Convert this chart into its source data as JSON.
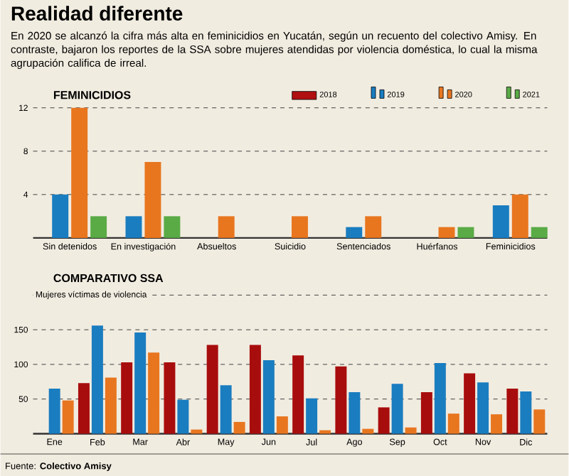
{
  "chart_data": [
    {
      "type": "bar",
      "title": "Realidad diferente",
      "subtitle": "En 2020 se alcanzó la cifra más alta en feminicidios en Yucatán, según un recuento del colectivo Amisy. En contraste, bajaron los reportes de la SSA sobre mujeres atendidas por violencia doméstica, lo cual la misma agrupación califica de irreal.",
      "annotations": [
        "FEMINICIDIOS"
      ],
      "categories": [
        "Sin detenidos",
        "En investigación",
        "Absueltos",
        "Suicidio",
        "Sentenciados",
        "Huérfanos",
        "Feminicidios"
      ],
      "series": [
        {
          "name": "2018",
          "color": "#b01010",
          "values": [
            null,
            null,
            null,
            null,
            null,
            null,
            null
          ]
        },
        {
          "name": "2019",
          "color": "#1a7dc0",
          "values": [
            4,
            2,
            null,
            null,
            1,
            null,
            3
          ]
        },
        {
          "name": "2020",
          "color": "#e8761f",
          "values": [
            12,
            7,
            2,
            2,
            2,
            1,
            4
          ]
        },
        {
          "name": "2021",
          "color": "#5aab46",
          "values": [
            2,
            2,
            null,
            null,
            null,
            1,
            1
          ]
        }
      ],
      "ylim": [
        0,
        12
      ],
      "yticks": [
        4,
        8,
        12
      ],
      "grid": "y",
      "legend": "top right"
    },
    {
      "type": "bar",
      "title": "COMPARATIVO SSA",
      "ylabel": "Mujeres víctimas de violencia",
      "annotations": [
        "Fuente: **Colectivo Amisy**"
      ],
      "categories": [
        "Ene",
        "Feb",
        "Mar",
        "Abr",
        "May",
        "Jun",
        "Jul",
        "Ago",
        "Sep",
        "Oct",
        "Nov",
        "Dic"
      ],
      "series": [
        {
          "color": "#a80d0d",
          "values": [
            null,
            73,
            103,
            103,
            128,
            128,
            113,
            97,
            38,
            60,
            87,
            65
          ]
        },
        {
          "color": "#1a7dc0",
          "values": [
            65,
            156,
            146,
            49,
            70,
            106,
            51,
            60,
            72,
            102,
            74,
            61
          ]
        },
        {
          "color": "#e8761f",
          "values": [
            48,
            81,
            117,
            6,
            17,
            25,
            5,
            7,
            9,
            29,
            28,
            35
          ]
        }
      ],
      "ylim": [
        0,
        200
      ],
      "yticks": [
        50,
        100,
        150,
        {
          "value": 200,
          "label": null
        }
      ],
      "grid": "y"
    }
  ]
}
